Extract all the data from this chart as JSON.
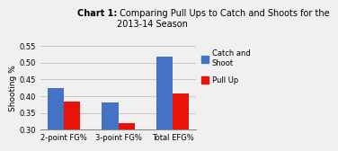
{
  "title_bold": "Chart 1:",
  "title_regular": " Comparing Pull Ups to Catch and Shoots for the\n2013-14 Season",
  "categories": [
    "2-point FG%",
    "3-point FG%",
    "Total EFG%"
  ],
  "catch_and_shoot": [
    0.425,
    0.38,
    0.518
  ],
  "pull_up": [
    0.383,
    0.318,
    0.408
  ],
  "catch_color": "#4472C4",
  "pull_color": "#E8140A",
  "ylabel": "Shooting %",
  "ylim": [
    0.3,
    0.55
  ],
  "yticks": [
    0.3,
    0.35,
    0.4,
    0.45,
    0.5,
    0.55
  ],
  "legend_labels": [
    "Catch and\nShoot",
    "Pull Up"
  ],
  "background_color": "#F0F0F0",
  "bar_width": 0.3,
  "title_fontsize": 7.0,
  "axis_fontsize": 6.5,
  "tick_fontsize": 6.0,
  "legend_fontsize": 6.0
}
